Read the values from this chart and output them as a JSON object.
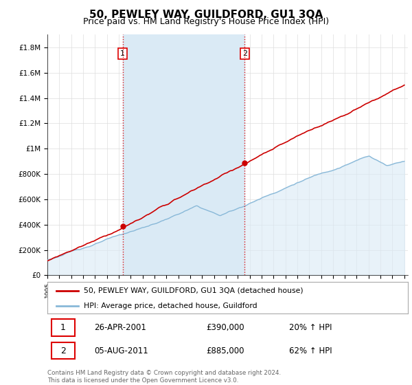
{
  "title": "50, PEWLEY WAY, GUILDFORD, GU1 3QA",
  "subtitle": "Price paid vs. HM Land Registry's House Price Index (HPI)",
  "ylabel_ticks": [
    "£0",
    "£200K",
    "£400K",
    "£600K",
    "£800K",
    "£1M",
    "£1.2M",
    "£1.4M",
    "£1.6M",
    "£1.8M"
  ],
  "ytick_values": [
    0,
    200000,
    400000,
    600000,
    800000,
    1000000,
    1200000,
    1400000,
    1600000,
    1800000
  ],
  "ylim": [
    0,
    1900000
  ],
  "sale1_year": 2001.32,
  "sale1_price": 390000,
  "sale1_date": "26-APR-2001",
  "sale1_pct": "20%",
  "sale2_year": 2011.59,
  "sale2_price": 885000,
  "sale2_date": "05-AUG-2011",
  "sale2_pct": "62%",
  "red_line_color": "#cc0000",
  "blue_line_color": "#88b8d8",
  "blue_fill_color": "#daeaf5",
  "dashed_color": "#dd0000",
  "legend_label1": "50, PEWLEY WAY, GUILDFORD, GU1 3QA (detached house)",
  "legend_label2": "HPI: Average price, detached house, Guildford",
  "footnote": "Contains HM Land Registry data © Crown copyright and database right 2024.\nThis data is licensed under the Open Government Licence v3.0.",
  "background_color": "#ffffff",
  "grid_color": "#dddddd"
}
